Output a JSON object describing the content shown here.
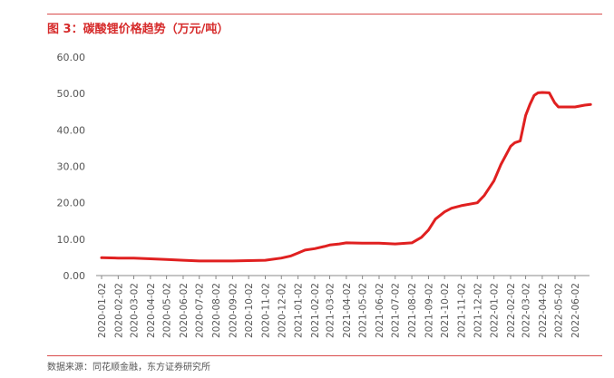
{
  "figure": {
    "title": "图 3：碳酸锂价格趋势（万元/吨）",
    "source": "数据来源：同花顺金融，东方证券研究所"
  },
  "colors": {
    "accent": "#d62b2b",
    "line": "#e02020",
    "axis": "#888888",
    "text": "#555555"
  },
  "chart_data": {
    "type": "line",
    "title": "碳酸锂价格趋势（万元/吨）",
    "xlabel": "",
    "ylabel": "",
    "ylim": [
      0,
      60
    ],
    "yticks": [
      "0.00",
      "10.00",
      "20.00",
      "30.00",
      "40.00",
      "50.00",
      "60.00"
    ],
    "yticks_values": [
      0,
      10,
      20,
      30,
      40,
      50,
      60
    ],
    "xticks": [
      "2020-01-02",
      "2020-02-02",
      "2020-03-02",
      "2020-04-02",
      "2020-05-02",
      "2020-06-02",
      "2020-07-02",
      "2020-08-02",
      "2020-09-02",
      "2020-10-02",
      "2020-11-02",
      "2020-12-02",
      "2021-01-02",
      "2021-02-02",
      "2021-03-02",
      "2021-04-02",
      "2021-05-02",
      "2021-06-02",
      "2021-07-02",
      "2021-08-02",
      "2021-09-02",
      "2021-10-02",
      "2021-11-02",
      "2021-12-02",
      "2022-01-02",
      "2022-02-02",
      "2022-03-02",
      "2022-04-02",
      "2022-05-02",
      "2022-06-02"
    ],
    "grid": false,
    "legend": "none",
    "series": [
      {
        "points": [
          [
            "2020-01-02",
            4.9
          ],
          [
            "2020-02-02",
            4.8
          ],
          [
            "2020-03-02",
            4.8
          ],
          [
            "2020-04-02",
            4.6
          ],
          [
            "2020-05-02",
            4.4
          ],
          [
            "2020-06-02",
            4.2
          ],
          [
            "2020-07-02",
            4.0
          ],
          [
            "2020-08-02",
            4.0
          ],
          [
            "2020-09-02",
            4.0
          ],
          [
            "2020-10-02",
            4.1
          ],
          [
            "2020-11-02",
            4.2
          ],
          [
            "2020-12-02",
            4.8
          ],
          [
            "2020-12-20",
            5.4
          ],
          [
            "2021-01-02",
            6.2
          ],
          [
            "2021-01-15",
            7.0
          ],
          [
            "2021-02-02",
            7.4
          ],
          [
            "2021-02-20",
            8.0
          ],
          [
            "2021-03-02",
            8.4
          ],
          [
            "2021-03-20",
            8.7
          ],
          [
            "2021-04-02",
            9.0
          ],
          [
            "2021-05-02",
            8.9
          ],
          [
            "2021-06-02",
            8.9
          ],
          [
            "2021-07-02",
            8.7
          ],
          [
            "2021-08-02",
            9.0
          ],
          [
            "2021-08-20",
            10.5
          ],
          [
            "2021-09-02",
            12.5
          ],
          [
            "2021-09-15",
            15.5
          ],
          [
            "2021-10-02",
            17.5
          ],
          [
            "2021-10-15",
            18.5
          ],
          [
            "2021-11-02",
            19.2
          ],
          [
            "2021-12-02",
            20.0
          ],
          [
            "2021-12-15",
            22.0
          ],
          [
            "2022-01-02",
            26.0
          ],
          [
            "2022-01-15",
            30.5
          ],
          [
            "2022-02-02",
            35.5
          ],
          [
            "2022-02-10",
            36.5
          ],
          [
            "2022-02-20",
            37.0
          ],
          [
            "2022-03-02",
            44.0
          ],
          [
            "2022-03-10",
            47.0
          ],
          [
            "2022-03-18",
            49.5
          ],
          [
            "2022-03-25",
            50.2
          ],
          [
            "2022-04-02",
            50.3
          ],
          [
            "2022-04-15",
            50.2
          ],
          [
            "2022-04-25",
            47.5
          ],
          [
            "2022-05-02",
            46.3
          ],
          [
            "2022-06-02",
            46.3
          ],
          [
            "2022-06-20",
            46.8
          ],
          [
            "2022-07-01",
            47.0
          ]
        ]
      }
    ]
  }
}
